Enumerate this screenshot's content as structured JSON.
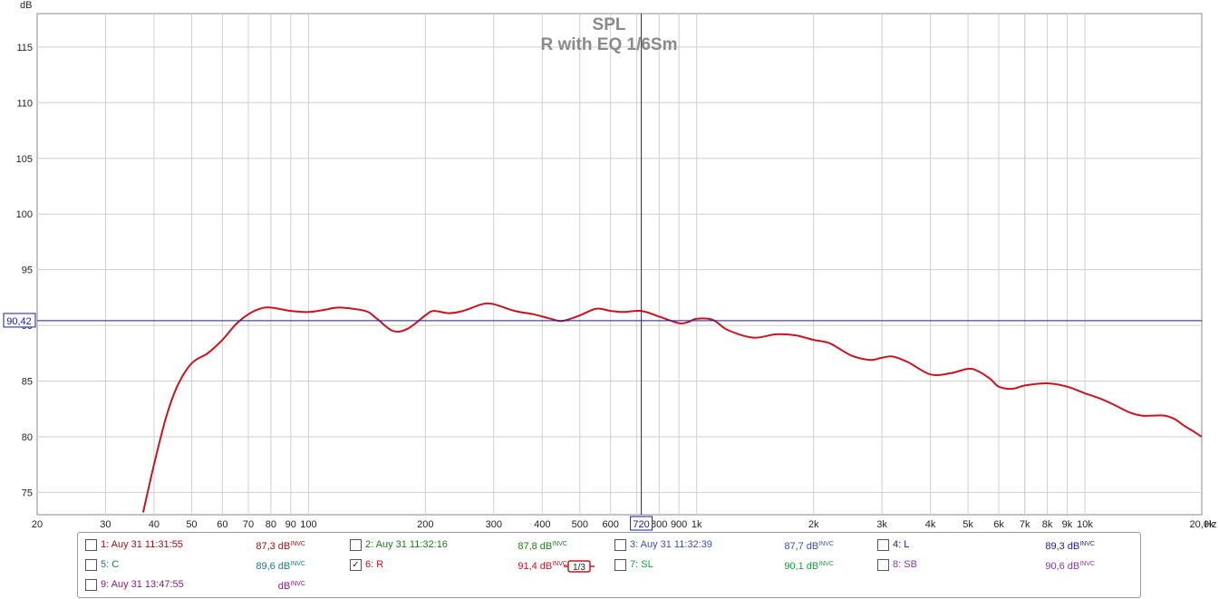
{
  "chart_data": {
    "type": "line",
    "title": "SPL",
    "subtitle": "R with EQ 1/6Sm",
    "ylabel": "dB",
    "xunit": "Hz",
    "xscale": "log",
    "xlim": [
      20,
      20000
    ],
    "ylim": [
      73,
      118
    ],
    "grid": true,
    "yticks": [
      75,
      80,
      85,
      90,
      95,
      100,
      105,
      110,
      115
    ],
    "xticks": [
      {
        "v": 20,
        "l": "20"
      },
      {
        "v": 30,
        "l": "30"
      },
      {
        "v": 40,
        "l": "40"
      },
      {
        "v": 50,
        "l": "50"
      },
      {
        "v": 60,
        "l": "60"
      },
      {
        "v": 70,
        "l": "70"
      },
      {
        "v": 80,
        "l": "80"
      },
      {
        "v": 90,
        "l": "90"
      },
      {
        "v": 100,
        "l": "100"
      },
      {
        "v": 200,
        "l": "200"
      },
      {
        "v": 300,
        "l": "300"
      },
      {
        "v": 400,
        "l": "400"
      },
      {
        "v": 500,
        "l": "500"
      },
      {
        "v": 600,
        "l": "600"
      },
      {
        "v": 800,
        "l": "800"
      },
      {
        "v": 900,
        "l": "900"
      },
      {
        "v": 1000,
        "l": "1k"
      },
      {
        "v": 2000,
        "l": "2k"
      },
      {
        "v": 3000,
        "l": "3k"
      },
      {
        "v": 4000,
        "l": "4k"
      },
      {
        "v": 5000,
        "l": "5k"
      },
      {
        "v": 6000,
        "l": "6k"
      },
      {
        "v": 7000,
        "l": "7k"
      },
      {
        "v": 8000,
        "l": "8k"
      },
      {
        "v": 9000,
        "l": "9k"
      },
      {
        "v": 10000,
        "l": "10k"
      },
      {
        "v": 20000,
        "l": "20,0k"
      }
    ],
    "minor_gridlines": [
      700,
      7000
    ],
    "cursor": {
      "x": 720,
      "y": 90.42,
      "x_label": "720",
      "y_label": "90,42",
      "color": "#1a1aa8"
    },
    "series": [
      {
        "name": "6: R",
        "color": "#c8141e",
        "x": [
          37.5,
          40,
          43,
          46,
          50,
          55,
          60,
          65,
          70,
          75,
          80,
          90,
          100,
          110,
          120,
          140,
          150,
          165,
          180,
          200,
          210,
          230,
          250,
          280,
          300,
          340,
          380,
          420,
          450,
          500,
          550,
          600,
          650,
          720,
          800,
          900,
          950,
          1000,
          1100,
          1200,
          1400,
          1600,
          1800,
          2000,
          2200,
          2500,
          2800,
          3000,
          3200,
          3500,
          4000,
          4500,
          5000,
          5300,
          5700,
          6000,
          6500,
          7000,
          8000,
          9000,
          10000,
          11000,
          12000,
          13000,
          14000,
          15000,
          16000,
          17000,
          18000,
          19000,
          20000
        ],
        "y": [
          73.2,
          77.5,
          81.8,
          84.6,
          86.6,
          87.5,
          88.7,
          90.1,
          91.0,
          91.5,
          91.6,
          91.3,
          91.2,
          91.4,
          91.6,
          91.3,
          90.6,
          89.5,
          89.7,
          90.9,
          91.3,
          91.1,
          91.3,
          91.9,
          91.9,
          91.3,
          91.0,
          90.6,
          90.4,
          90.9,
          91.5,
          91.3,
          91.2,
          91.3,
          90.8,
          90.2,
          90.3,
          90.6,
          90.5,
          89.6,
          88.9,
          89.2,
          89.1,
          88.7,
          88.4,
          87.3,
          86.9,
          87.1,
          87.2,
          86.7,
          85.6,
          85.7,
          86.1,
          85.9,
          85.2,
          84.5,
          84.3,
          84.6,
          84.8,
          84.5,
          83.9,
          83.4,
          82.8,
          82.2,
          81.9,
          81.9,
          81.9,
          81.6,
          81.0,
          80.5,
          80.0
        ]
      }
    ]
  },
  "legend": {
    "smoothing_label": "1/3",
    "items": [
      {
        "label": "1: Auy 31 11:31:55",
        "value": "87,3 dB",
        "suffix": "INVC",
        "color": "#a01010",
        "checked": false
      },
      {
        "label": "2: Auy 31 11:32:16",
        "value": "87,8 dB",
        "suffix": "INVC",
        "color": "#1a7a1a",
        "checked": false
      },
      {
        "label": "3: Auy 31 11:32:39",
        "value": "87,7 dB",
        "suffix": "INVC",
        "color": "#3a50a8",
        "checked": false
      },
      {
        "label": "4: L",
        "value": "89,3 dB",
        "suffix": "INVC",
        "color": "#1a1a9a",
        "checked": false
      },
      {
        "label": "5: C",
        "value": "89,6 dB",
        "suffix": "INVC",
        "color": "#1a7a7a",
        "checked": false
      },
      {
        "label": "6: R",
        "value": "91,4 dB",
        "suffix": "INVC",
        "color": "#c8141e",
        "checked": true
      },
      {
        "label": "7: SL",
        "value": "90,1 dB",
        "suffix": "INVC",
        "color": "#14a040",
        "checked": false
      },
      {
        "label": "8: SB",
        "value": "90,6 dB",
        "suffix": "INVC",
        "color": "#7a3aa8",
        "checked": false
      },
      {
        "label": "9: Auy 31 13:47:55",
        "value": "dB",
        "suffix": "INVC",
        "color": "#8a1a7a",
        "checked": false
      }
    ]
  }
}
